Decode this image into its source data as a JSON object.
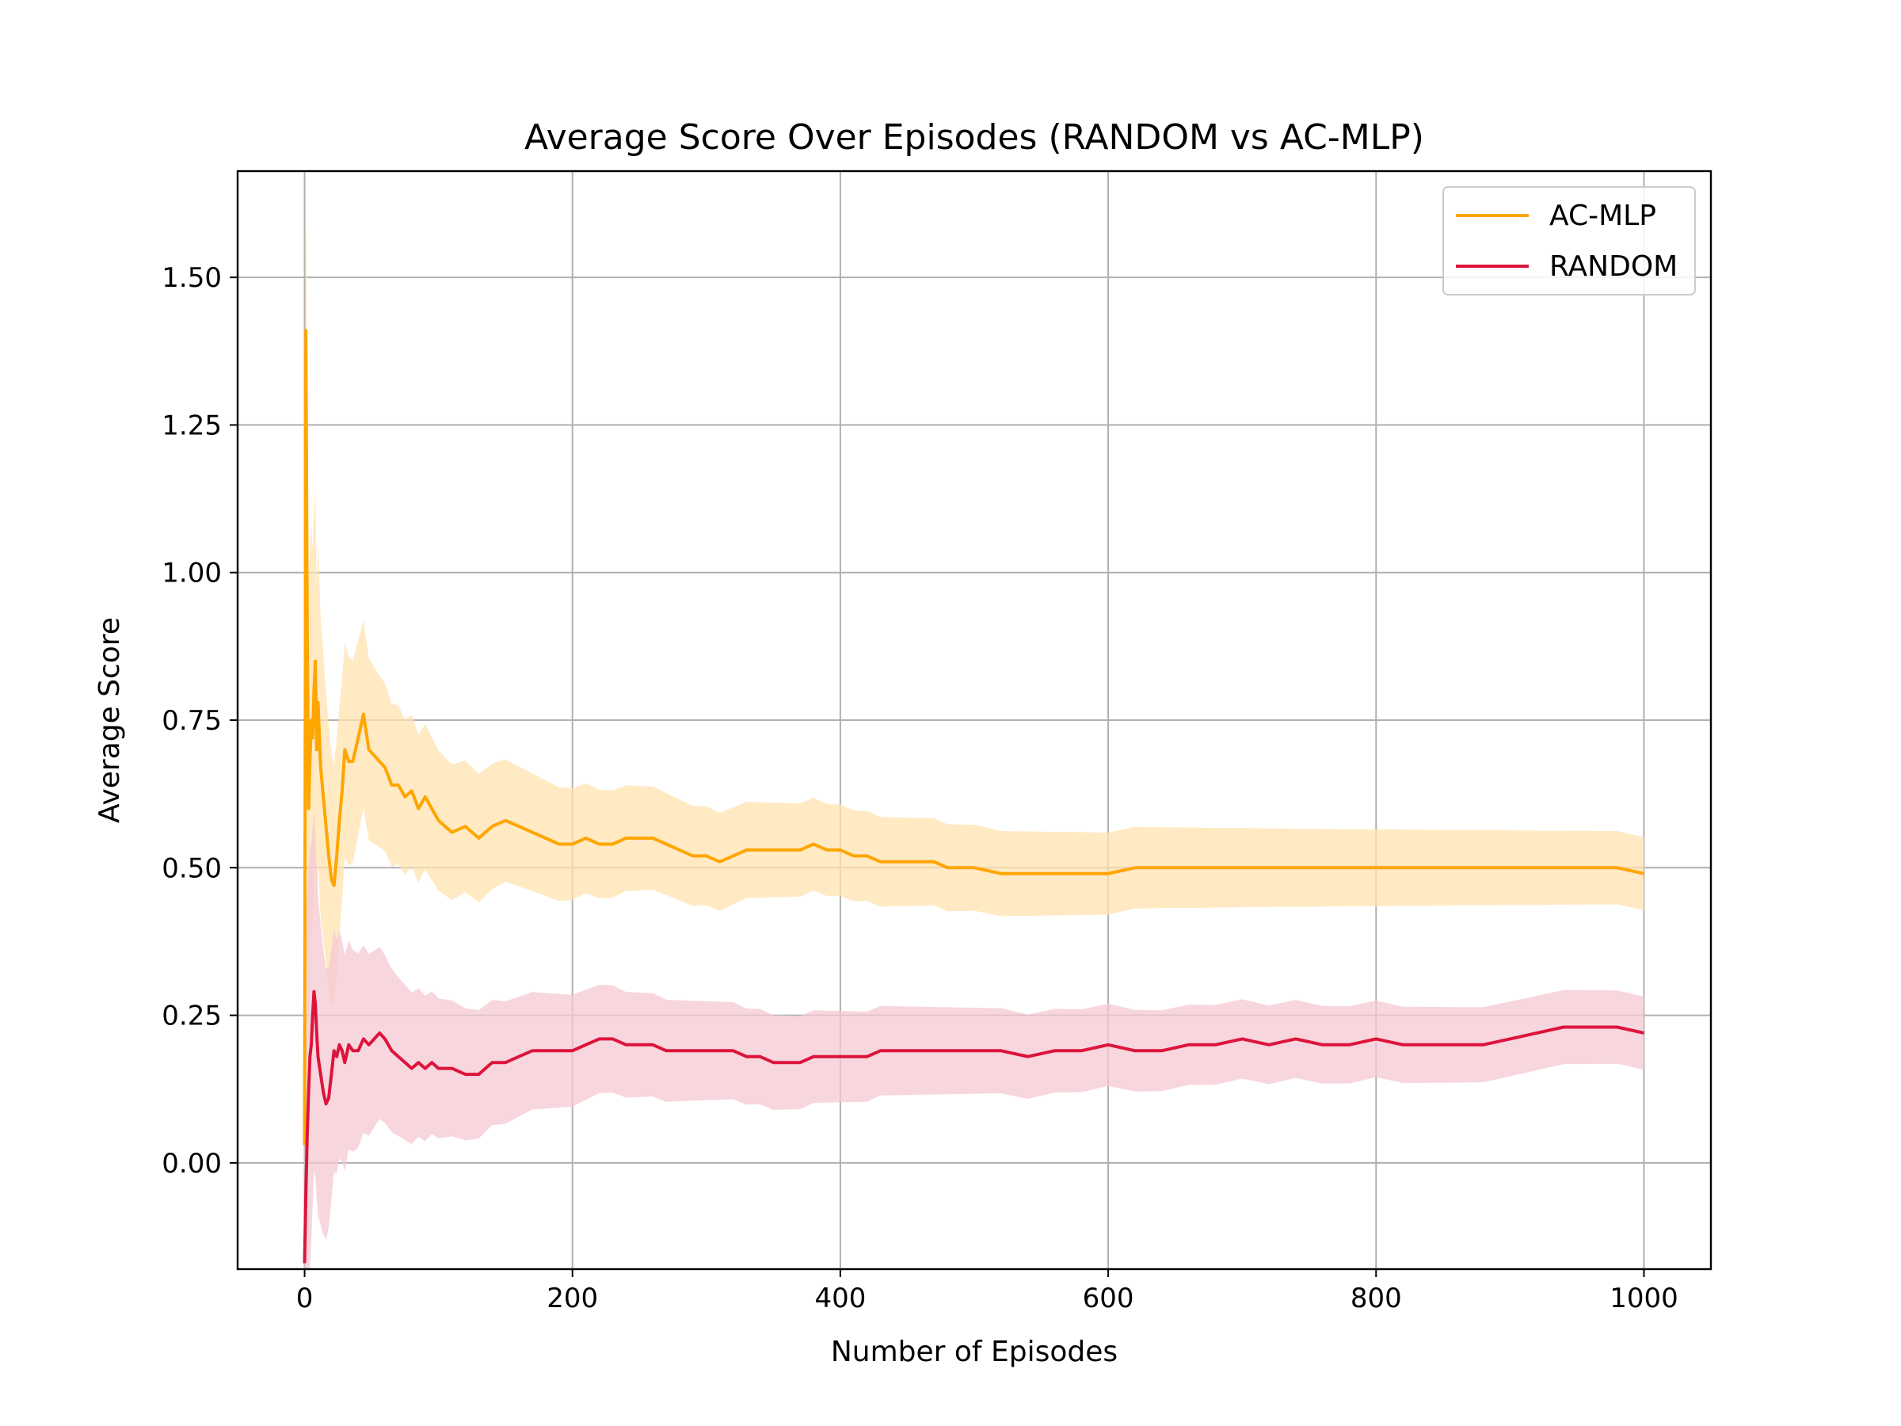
{
  "chart_data": {
    "type": "line",
    "title": "Average Score Over Episodes (RANDOM vs AC-MLP)",
    "xlabel": "Number of Episodes",
    "ylabel": "Average Score",
    "xlim": [
      -50,
      1050
    ],
    "ylim": [
      -0.18,
      1.68
    ],
    "xticks": [
      0,
      200,
      400,
      600,
      800,
      1000
    ],
    "xtick_labels": [
      "0",
      "200",
      "400",
      "600",
      "800",
      "1000"
    ],
    "yticks": [
      0.0,
      0.25,
      0.5,
      0.75,
      1.0,
      1.25,
      1.5
    ],
    "ytick_labels": [
      "0.00",
      "0.25",
      "0.50",
      "0.75",
      "1.00",
      "1.25",
      "1.50"
    ],
    "grid": true,
    "legend_position": "top-right",
    "series": [
      {
        "name": "AC-MLP",
        "color": "#FFA500",
        "band_color": "#FFE3B0",
        "x": [
          0,
          1,
          2,
          3,
          4,
          5,
          6,
          7,
          8,
          9,
          10,
          12,
          14,
          16,
          18,
          20,
          22,
          24,
          26,
          28,
          30,
          33,
          36,
          40,
          44,
          48,
          52,
          56,
          60,
          65,
          70,
          75,
          80,
          85,
          90,
          95,
          100,
          110,
          120,
          130,
          140,
          150,
          160,
          170,
          180,
          190,
          200,
          210,
          220,
          230,
          240,
          250,
          260,
          270,
          280,
          290,
          300,
          310,
          320,
          330,
          340,
          350,
          360,
          370,
          380,
          390,
          400,
          410,
          420,
          430,
          440,
          450,
          460,
          470,
          480,
          490,
          500,
          520,
          540,
          560,
          580,
          600,
          620,
          640,
          660,
          680,
          700,
          720,
          740,
          760,
          780,
          800,
          820,
          840,
          860,
          880,
          900,
          920,
          940,
          960,
          980,
          1000
        ],
        "y": [
          0.03,
          1.41,
          0.9,
          0.6,
          0.68,
          0.75,
          0.72,
          0.8,
          0.85,
          0.7,
          0.78,
          0.67,
          0.62,
          0.57,
          0.52,
          0.48,
          0.47,
          0.52,
          0.58,
          0.63,
          0.7,
          0.68,
          0.68,
          0.72,
          0.76,
          0.7,
          0.69,
          0.68,
          0.67,
          0.64,
          0.64,
          0.62,
          0.63,
          0.6,
          0.62,
          0.6,
          0.58,
          0.56,
          0.57,
          0.55,
          0.57,
          0.58,
          0.57,
          0.56,
          0.55,
          0.54,
          0.54,
          0.55,
          0.54,
          0.54,
          0.55,
          0.55,
          0.55,
          0.54,
          0.53,
          0.52,
          0.52,
          0.51,
          0.52,
          0.53,
          0.53,
          0.53,
          0.53,
          0.53,
          0.54,
          0.53,
          0.53,
          0.52,
          0.52,
          0.51,
          0.51,
          0.51,
          0.51,
          0.51,
          0.5,
          0.5,
          0.5,
          0.49,
          0.49,
          0.49,
          0.49,
          0.49,
          0.5,
          0.5,
          0.5,
          0.5,
          0.5,
          0.5,
          0.5,
          0.5,
          0.5,
          0.5,
          0.5,
          0.5,
          0.5,
          0.5,
          0.5,
          0.5,
          0.5,
          0.5,
          0.5,
          0.49
        ]
      },
      {
        "name": "RANDOM",
        "color": "#DC143C",
        "band_color": "#F6C8D3",
        "x": [
          0,
          1,
          2,
          3,
          4,
          5,
          6,
          7,
          8,
          9,
          10,
          12,
          14,
          16,
          18,
          20,
          22,
          24,
          26,
          28,
          30,
          33,
          36,
          40,
          44,
          48,
          52,
          56,
          60,
          65,
          70,
          75,
          80,
          85,
          90,
          95,
          100,
          110,
          120,
          130,
          140,
          150,
          160,
          170,
          180,
          190,
          200,
          210,
          220,
          230,
          240,
          250,
          260,
          270,
          280,
          290,
          300,
          310,
          320,
          330,
          340,
          350,
          360,
          370,
          380,
          390,
          400,
          410,
          420,
          430,
          440,
          450,
          460,
          470,
          480,
          490,
          500,
          520,
          540,
          560,
          580,
          600,
          620,
          640,
          660,
          680,
          700,
          720,
          740,
          760,
          780,
          800,
          820,
          840,
          860,
          880,
          900,
          920,
          940,
          960,
          980,
          1000
        ],
        "y": [
          -0.17,
          -0.05,
          0.05,
          0.12,
          0.18,
          0.2,
          0.25,
          0.29,
          0.27,
          0.22,
          0.18,
          0.15,
          0.12,
          0.1,
          0.11,
          0.15,
          0.19,
          0.18,
          0.2,
          0.19,
          0.17,
          0.2,
          0.19,
          0.19,
          0.21,
          0.2,
          0.21,
          0.22,
          0.21,
          0.19,
          0.18,
          0.17,
          0.16,
          0.17,
          0.16,
          0.17,
          0.16,
          0.16,
          0.15,
          0.15,
          0.17,
          0.17,
          0.18,
          0.19,
          0.19,
          0.19,
          0.19,
          0.2,
          0.21,
          0.21,
          0.2,
          0.2,
          0.2,
          0.19,
          0.19,
          0.19,
          0.19,
          0.19,
          0.19,
          0.18,
          0.18,
          0.17,
          0.17,
          0.17,
          0.18,
          0.18,
          0.18,
          0.18,
          0.18,
          0.19,
          0.19,
          0.19,
          0.19,
          0.19,
          0.19,
          0.19,
          0.19,
          0.19,
          0.18,
          0.19,
          0.19,
          0.2,
          0.19,
          0.19,
          0.2,
          0.2,
          0.21,
          0.2,
          0.21,
          0.2,
          0.2,
          0.21,
          0.2,
          0.2,
          0.2,
          0.2,
          0.21,
          0.22,
          0.23,
          0.23,
          0.23,
          0.22
        ]
      }
    ]
  }
}
